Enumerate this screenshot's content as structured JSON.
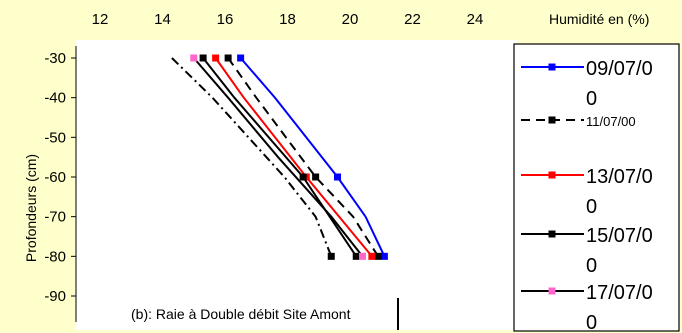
{
  "chart_data": {
    "type": "line",
    "x_axis": {
      "label": "Humidité en (%)",
      "range": [
        12,
        24
      ],
      "ticks": [
        "12",
        "14",
        "16",
        "18",
        "20",
        "22",
        "24"
      ],
      "position": "top"
    },
    "y_axis": {
      "label": "Profondeurs (cm)",
      "range": [
        -90,
        -30
      ],
      "ticks": [
        "-30",
        "-40",
        "-50",
        "-60",
        "-70",
        "-80",
        "-90"
      ]
    },
    "annotation": "(b): Raie à Double débit Site Amont",
    "grid": false,
    "legend_position": "right",
    "series": [
      {
        "name": "09/07/00",
        "legend_lines": [
          "09/07/0",
          "0"
        ],
        "color": "#0000FF",
        "dash": "solid",
        "marker": "square",
        "points": [
          {
            "x": 16.5,
            "y": -30
          },
          {
            "x": 17.6,
            "y": -40
          },
          {
            "x": 19.6,
            "y": -60
          },
          {
            "x": 20.5,
            "y": -70
          },
          {
            "x": 21.1,
            "y": -80
          }
        ],
        "marked": [
          0,
          2,
          4
        ]
      },
      {
        "name": "11/07/00",
        "legend_lines": [
          "11/07/00"
        ],
        "color": "#000000",
        "dash": "dash",
        "marker": "square",
        "points": [
          {
            "x": 16.1,
            "y": -30
          },
          {
            "x": 17.0,
            "y": -40
          },
          {
            "x": 18.9,
            "y": -60
          },
          {
            "x": 20.1,
            "y": -70
          },
          {
            "x": 20.9,
            "y": -80
          }
        ],
        "marked": [
          0,
          2,
          4
        ]
      },
      {
        "name": "13/07/00",
        "legend_lines": [
          "13/07/0",
          "0"
        ],
        "color": "#FF0000",
        "dash": "solid",
        "marker": "square",
        "points": [
          {
            "x": 15.7,
            "y": -30
          },
          {
            "x": 16.6,
            "y": -40
          },
          {
            "x": 18.6,
            "y": -60
          },
          {
            "x": 20.7,
            "y": -80
          }
        ],
        "marked": [
          0,
          2,
          3
        ]
      },
      {
        "name": "15/07/00",
        "legend_lines": [
          "15/07/0",
          "0"
        ],
        "color": "#000000",
        "dash": "solid",
        "marker": "square",
        "points": [
          {
            "x": 15.3,
            "y": -30
          },
          {
            "x": 16.3,
            "y": -40
          },
          {
            "x": 18.5,
            "y": -60
          },
          {
            "x": 20.2,
            "y": -80
          }
        ],
        "marked": [
          0,
          2,
          3
        ]
      },
      {
        "name": "17/07/00",
        "legend_lines": [
          "17/07/0",
          "0"
        ],
        "color": "#000000",
        "dash": "solid",
        "marker": "square",
        "marker_color": "#FF66CC",
        "points": [
          {
            "x": 15.0,
            "y": -30
          },
          {
            "x": 16.1,
            "y": -40
          },
          {
            "x": 17.7,
            "y": -55
          },
          {
            "x": 19.4,
            "y": -70
          },
          {
            "x": 20.4,
            "y": -80
          }
        ],
        "marked": [
          0,
          4
        ]
      },
      {
        "name": "",
        "legend_lines": [],
        "color": "#000000",
        "dash": "dashdot",
        "marker": "square",
        "points": [
          {
            "x": 14.3,
            "y": -30
          },
          {
            "x": 15.6,
            "y": -40
          },
          {
            "x": 17.9,
            "y": -60
          },
          {
            "x": 18.9,
            "y": -70
          },
          {
            "x": 19.4,
            "y": -80
          }
        ],
        "marked": [
          4
        ]
      }
    ]
  }
}
